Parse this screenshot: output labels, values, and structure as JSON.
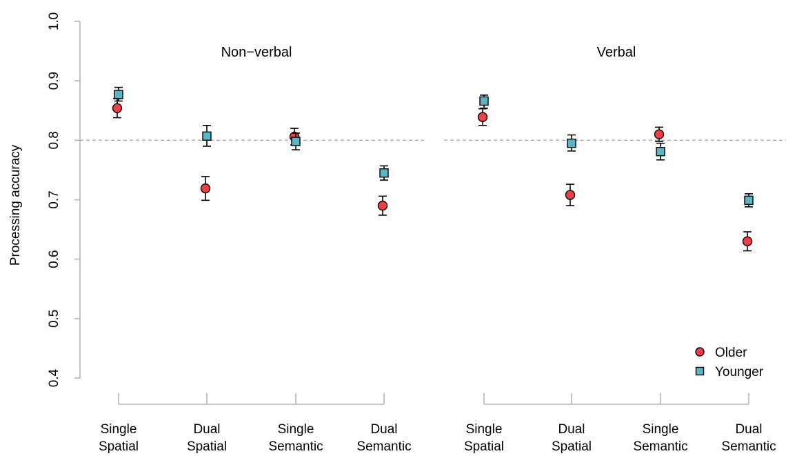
{
  "chart_data": {
    "type": "scatter",
    "ylabel": "Processing accuracy",
    "ylim": [
      0.4,
      1.0
    ],
    "yticks": [
      "0.4",
      "0.5",
      "0.6",
      "0.7",
      "0.8",
      "0.9",
      "1.0"
    ],
    "reference_line": 0.8,
    "panels": [
      {
        "title": "Non−verbal",
        "conditions": [
          {
            "line1": "Single",
            "line2": "Spatial"
          },
          {
            "line1": "Dual",
            "line2": "Spatial"
          },
          {
            "line1": "Single",
            "line2": "Semantic"
          },
          {
            "line1": "Dual",
            "line2": "Semantic"
          }
        ],
        "series": [
          {
            "name": "Older",
            "values": [
              0.854,
              0.719,
              0.806,
              0.69
            ],
            "lower": [
              0.838,
              0.699,
              0.792,
              0.674
            ],
            "upper": [
              0.87,
              0.739,
              0.82,
              0.706
            ]
          },
          {
            "name": "Younger",
            "values": [
              0.877,
              0.807,
              0.798,
              0.745
            ],
            "lower": [
              0.866,
              0.79,
              0.784,
              0.733
            ],
            "upper": [
              0.889,
              0.825,
              0.812,
              0.757
            ]
          }
        ]
      },
      {
        "title": "Verbal",
        "conditions": [
          {
            "line1": "Single",
            "line2": "Spatial"
          },
          {
            "line1": "Dual",
            "line2": "Spatial"
          },
          {
            "line1": "Single",
            "line2": "Semantic"
          },
          {
            "line1": "Dual",
            "line2": "Semantic"
          }
        ],
        "series": [
          {
            "name": "Older",
            "values": [
              0.839,
              0.708,
              0.81,
              0.63
            ],
            "lower": [
              0.825,
              0.69,
              0.798,
              0.614
            ],
            "upper": [
              0.853,
              0.726,
              0.822,
              0.646
            ]
          },
          {
            "name": "Younger",
            "values": [
              0.866,
              0.795,
              0.781,
              0.699
            ],
            "lower": [
              0.854,
              0.782,
              0.767,
              0.688
            ],
            "upper": [
              0.876,
              0.809,
              0.795,
              0.71
            ]
          }
        ]
      }
    ],
    "legend": {
      "position": "bottom-right",
      "entries": [
        {
          "name": "Older",
          "shape": "circle",
          "color": "#ee3f47"
        },
        {
          "name": "Younger",
          "shape": "square",
          "color": "#5ab6c4"
        }
      ]
    }
  }
}
